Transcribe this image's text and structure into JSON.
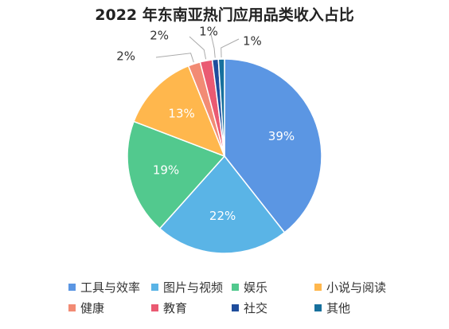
{
  "chart_data": {
    "type": "pie",
    "title": "2022 年东南亚热门应用品类收入占比",
    "slices": [
      {
        "label": "工具与效率",
        "value": 39,
        "display": "39%",
        "color": "#5b96e3"
      },
      {
        "label": "图片与视频",
        "value": 22,
        "display": "22%",
        "color": "#5ab4e6"
      },
      {
        "label": "娱乐",
        "value": 19,
        "display": "19%",
        "color": "#52c98e"
      },
      {
        "label": "小说与阅读",
        "value": 13,
        "display": "13%",
        "color": "#ffb74d"
      },
      {
        "label": "健康",
        "value": 2,
        "display": "2%",
        "color": "#f28b74"
      },
      {
        "label": "教育",
        "value": 2,
        "display": "2%",
        "color": "#ea5a72"
      },
      {
        "label": "社交",
        "value": 1,
        "display": "1%",
        "color": "#1f4d9c"
      },
      {
        "label": "其他",
        "value": 1,
        "display": "1%",
        "color": "#17709d"
      }
    ],
    "legend_position": "bottom"
  }
}
